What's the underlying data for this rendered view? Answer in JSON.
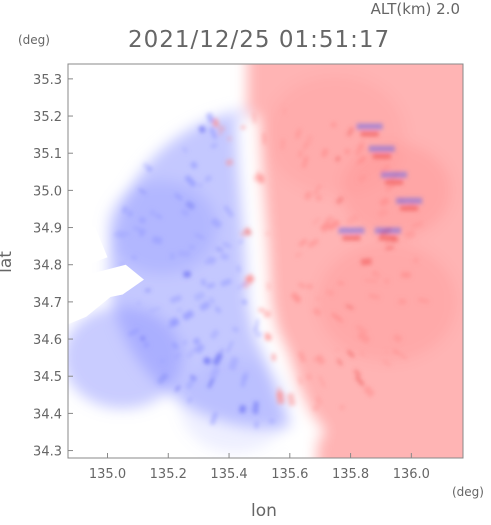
{
  "header": {
    "altitude_label": "ALT(km) 2.0",
    "timestamp": "2021/12/25 01:51:17"
  },
  "chart_data": {
    "type": "heatmap",
    "title": "2021/12/25 01:51:17",
    "subtitle": "ALT(km) 2.0",
    "xlabel": "lon",
    "ylabel": "lat",
    "x_unit": "(deg)",
    "y_unit": "(deg)",
    "xlim": [
      134.87,
      136.17
    ],
    "ylim": [
      34.28,
      35.34
    ],
    "x_ticks": [
      135.0,
      135.2,
      135.4,
      135.6,
      135.8,
      136.0
    ],
    "x_tick_labels": [
      "135.0",
      "135.2",
      "135.4",
      "135.6",
      "135.8",
      "136.0"
    ],
    "y_ticks": [
      34.3,
      34.4,
      34.5,
      34.6,
      34.7,
      34.8,
      34.9,
      35.0,
      35.1,
      35.2,
      35.3
    ],
    "y_tick_labels": [
      "34.3",
      "34.4",
      "34.5",
      "34.6",
      "34.7",
      "34.8",
      "34.9",
      "35.0",
      "35.1",
      "35.2",
      "35.3"
    ],
    "grid": false,
    "legend": "none",
    "colors": {
      "approaching": "#8f94ff",
      "receding": "#ff8c8c",
      "neutral": "#ffffff",
      "strong_approaching": "#5e62f2",
      "strong_receding": "#ef5050"
    },
    "radar_coverage": {
      "center_lon": 135.53,
      "center_lat": 34.79,
      "radius_lat_deg": 0.43
    },
    "zero_line": [
      [
        135.46,
        35.2
      ],
      [
        135.47,
        35.05
      ],
      [
        135.48,
        34.95
      ],
      [
        135.49,
        34.85
      ],
      [
        135.5,
        34.7
      ],
      [
        135.52,
        34.62
      ],
      [
        135.56,
        34.55
      ],
      [
        135.6,
        34.45
      ],
      [
        135.64,
        34.38
      ],
      [
        135.69,
        34.33
      ]
    ],
    "regions": [
      {
        "name": "west",
        "polarity": "approaching",
        "intensity": 0.55
      },
      {
        "name": "southwest",
        "polarity": "approaching",
        "intensity": 0.8
      },
      {
        "name": "north",
        "polarity": "receding",
        "intensity": 0.3
      },
      {
        "name": "northeast",
        "polarity": "receding",
        "intensity": 0.6
      },
      {
        "name": "east",
        "polarity": "receding",
        "intensity": 0.45
      },
      {
        "name": "south",
        "polarity": "approaching",
        "intensity": 0.25
      }
    ]
  }
}
